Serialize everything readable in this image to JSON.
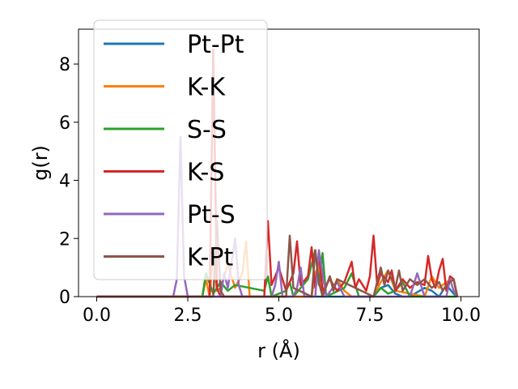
{
  "chart_data": {
    "type": "line",
    "title": "",
    "xlabel": "r (Å)",
    "ylabel": "g(r)",
    "xlim": [
      -0.5,
      10.5
    ],
    "ylim": [
      0,
      9.2
    ],
    "xticks": [
      "0.0",
      "2.5",
      "5.0",
      "7.5",
      "10.0"
    ],
    "xtick_values": [
      0,
      2.5,
      5,
      7.5,
      10
    ],
    "yticks": [
      "0",
      "2",
      "4",
      "6",
      "8"
    ],
    "ytick_values": [
      0,
      2,
      4,
      6,
      8
    ],
    "grid": false,
    "legend_position": "upper-left",
    "series": [
      {
        "name": "Pt-Pt",
        "color": "#1f77b4",
        "x": [
          0,
          7.4,
          7.6,
          7.8,
          8.0,
          8.2,
          8.4,
          8.6,
          9.0,
          9.2,
          9.4,
          9.6,
          9.8,
          9.9
        ],
        "y": [
          0,
          0,
          0,
          0.3,
          0.4,
          0.1,
          0,
          0,
          0.3,
          0.2,
          0,
          0.4,
          0.1,
          0
        ]
      },
      {
        "name": "K-K",
        "color": "#ff7f0e",
        "x": [
          0,
          2.9,
          3.0,
          3.1,
          3.2,
          3.3,
          3.4,
          3.6,
          3.8,
          4.0,
          4.1,
          4.2,
          5.9,
          6.0,
          6.1,
          6.2,
          6.4,
          6.5,
          6.6,
          6.8,
          7.0,
          7.6,
          7.8,
          8.0,
          8.2,
          9.0,
          9.2,
          9.4,
          9.6,
          9.8,
          9.9
        ],
        "y": [
          0,
          0,
          0.6,
          0,
          1.5,
          0.2,
          0.3,
          1.1,
          0.3,
          0.8,
          1.9,
          0,
          0,
          0.8,
          1.1,
          0,
          0.7,
          0.3,
          0.6,
          0.2,
          0,
          0,
          0.5,
          0.9,
          0.2,
          0,
          0.7,
          0.3,
          0.5,
          0.6,
          0
        ]
      },
      {
        "name": "S-S",
        "color": "#2ca02c",
        "x": [
          0,
          2.9,
          3.0,
          3.2,
          3.4,
          3.6,
          3.8,
          4.6,
          4.7,
          4.8,
          5.2,
          5.3,
          5.4,
          5.8,
          6.0,
          6.1,
          6.2,
          6.3,
          6.8,
          7.0,
          7.2,
          7.6,
          7.8,
          8.0,
          8.2,
          8.4,
          8.6,
          9.9
        ],
        "y": [
          0,
          0,
          0.8,
          0.1,
          0.5,
          0.2,
          0.4,
          0.2,
          0.7,
          0,
          0.2,
          0.5,
          0,
          0.6,
          1.6,
          0.4,
          1.5,
          0,
          0.3,
          0.8,
          0,
          0,
          0.3,
          0.1,
          0.2,
          0.5,
          0,
          0
        ]
      },
      {
        "name": "K-S",
        "color": "#d62728",
        "x": [
          0,
          3.1,
          3.2,
          3.3,
          3.4,
          4.6,
          4.7,
          4.8,
          5.0,
          5.2,
          5.4,
          5.5,
          5.6,
          5.8,
          5.9,
          6.0,
          6.1,
          6.2,
          6.4,
          6.6,
          6.8,
          7.0,
          7.1,
          7.2,
          7.4,
          7.5,
          7.6,
          7.7,
          7.8,
          8.0,
          8.1,
          8.2,
          8.4,
          8.6,
          8.8,
          9.0,
          9.1,
          9.2,
          9.3,
          9.4,
          9.5,
          9.6,
          9.7,
          9.8,
          9.9
        ],
        "y": [
          0,
          0,
          8.5,
          0.3,
          0,
          0,
          2.6,
          0.4,
          1.0,
          0.2,
          0.8,
          1.9,
          0.4,
          0.7,
          1.7,
          0.3,
          1.5,
          0.2,
          0.6,
          0.2,
          0.5,
          1.2,
          0.3,
          0.6,
          0.2,
          0.7,
          2.1,
          0.4,
          0.8,
          0.5,
          0.9,
          0.2,
          0.6,
          0.3,
          0.5,
          0.4,
          1.4,
          0.6,
          0.3,
          0.9,
          1.3,
          0.2,
          0.7,
          0.6,
          0
        ]
      },
      {
        "name": "Pt-S",
        "color": "#9467bd",
        "x": [
          0,
          2.1,
          2.2,
          2.3,
          2.4,
          2.5,
          3.4,
          3.5,
          3.6,
          3.8,
          3.9,
          4.0,
          4.8,
          4.9,
          5.0,
          5.1,
          5.4,
          5.5,
          5.6,
          5.7,
          6.0,
          6.1,
          6.2,
          6.3,
          6.6,
          6.8,
          7.0,
          8.6,
          8.8,
          9.0,
          9.6,
          9.7,
          9.8,
          9.9
        ],
        "y": [
          0,
          0,
          0.6,
          5.5,
          0.7,
          0,
          0,
          0.8,
          0.3,
          2.0,
          0.4,
          0,
          0,
          0.4,
          1.2,
          0,
          0,
          0.3,
          1.0,
          0,
          0,
          1.6,
          0.8,
          0,
          0.5,
          0,
          0,
          0,
          0.8,
          0,
          0,
          0.6,
          0.2,
          0
        ]
      },
      {
        "name": "K-Pt",
        "color": "#8c564b",
        "x": [
          0,
          3.2,
          3.3,
          3.4,
          3.5,
          5.2,
          5.3,
          5.4,
          5.9,
          6.0,
          6.1,
          6.2,
          6.4,
          6.5,
          6.6,
          7.6,
          7.8,
          7.9,
          8.0,
          8.2,
          8.3,
          8.4,
          8.6,
          8.8,
          9.0,
          9.2,
          9.4,
          9.5,
          9.6,
          9.8,
          9.9
        ],
        "y": [
          0,
          0,
          2.6,
          0.2,
          0,
          0,
          2.1,
          0.3,
          0,
          1.6,
          0.5,
          0,
          0.7,
          0.2,
          0.6,
          0,
          1.0,
          0.4,
          0.9,
          0.3,
          0.9,
          0.2,
          0.6,
          0.4,
          0.6,
          0.3,
          0.5,
          0.2,
          0.4,
          0.6,
          0
        ]
      }
    ]
  }
}
